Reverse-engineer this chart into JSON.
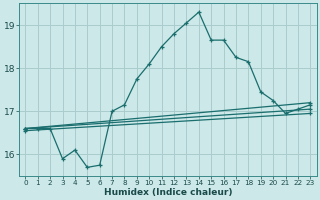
{
  "xlabel": "Humidex (Indice chaleur)",
  "ylabel": "",
  "background_color": "#cce8e8",
  "grid_color": "#aacccc",
  "line_color": "#1a6e6e",
  "xlim": [
    -0.5,
    23.5
  ],
  "ylim": [
    15.5,
    19.5
  ],
  "yticks": [
    16,
    17,
    18,
    19
  ],
  "xticks": [
    0,
    1,
    2,
    3,
    4,
    5,
    6,
    7,
    8,
    9,
    10,
    11,
    12,
    13,
    14,
    15,
    16,
    17,
    18,
    19,
    20,
    21,
    22,
    23
  ],
  "lines": [
    {
      "x": [
        0,
        1,
        2,
        3,
        4,
        5,
        6,
        7,
        8,
        9,
        10,
        11,
        12,
        13,
        14,
        15,
        16,
        17,
        18,
        19,
        20,
        21,
        22,
        23
      ],
      "y": [
        16.6,
        16.6,
        16.6,
        15.9,
        16.1,
        15.7,
        15.75,
        17.0,
        17.15,
        17.75,
        18.1,
        18.5,
        18.8,
        19.05,
        19.3,
        18.65,
        18.65,
        18.25,
        18.15,
        17.45,
        17.25,
        16.95,
        17.05,
        17.15
      ],
      "marker": true
    },
    {
      "x": [
        0,
        23
      ],
      "y": [
        16.6,
        17.2
      ],
      "marker": true
    },
    {
      "x": [
        0,
        23
      ],
      "y": [
        16.6,
        17.05
      ],
      "marker": true
    },
    {
      "x": [
        0,
        23
      ],
      "y": [
        16.55,
        16.95
      ],
      "marker": true
    }
  ]
}
